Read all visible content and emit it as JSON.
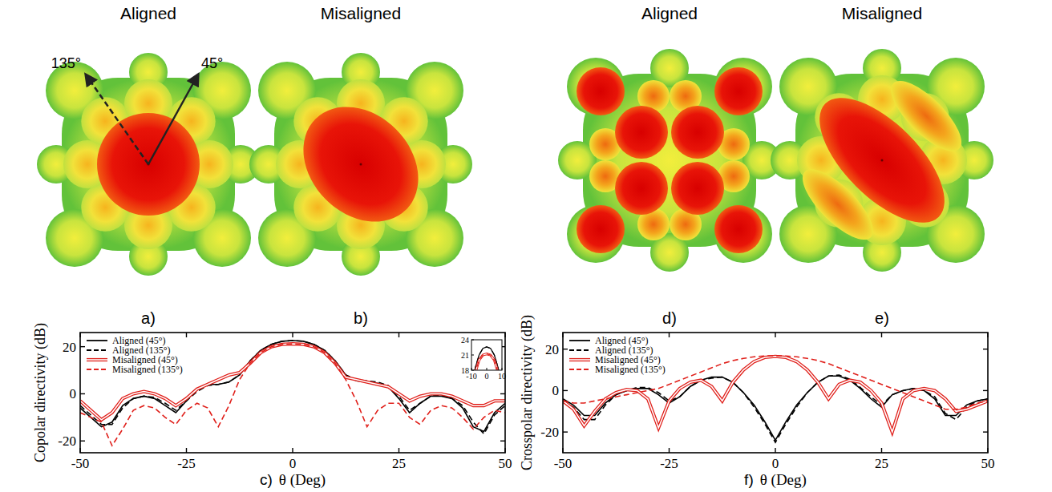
{
  "renders": [
    {
      "title": "Aligned",
      "label": "a)"
    },
    {
      "title": "Misaligned",
      "label": "b)"
    },
    {
      "title": "Aligned",
      "label": "d)"
    },
    {
      "title": "Misaligned",
      "label": "e)"
    }
  ],
  "arrows": [
    "135°",
    "45°"
  ],
  "chart_data": [
    {
      "type": "line",
      "label": "c)",
      "x_label": "θ (Deg)",
      "y_label": "Copolar directivity (dB)",
      "x": [
        -50,
        -47.5,
        -45,
        -42.5,
        -40,
        -37.5,
        -35,
        -32.5,
        -30,
        -27.5,
        -25,
        -22.5,
        -20,
        -17.5,
        -15,
        -12.5,
        -10,
        -7.5,
        -5,
        -2.5,
        0,
        2.5,
        5,
        7.5,
        10,
        12.5,
        15,
        17.5,
        20,
        22.5,
        25,
        27.5,
        30,
        32.5,
        35,
        37.5,
        40,
        42.5,
        45,
        47.5,
        50
      ],
      "xlim": [
        -50,
        50
      ],
      "xticks": [
        -50,
        -25,
        0,
        25,
        50
      ],
      "ylim": [
        -25,
        26
      ],
      "yticks": [
        -20,
        0,
        20
      ],
      "grid": false,
      "legend": "upper-left",
      "series": [
        {
          "name": "Aligned (45°)",
          "color": "#000000",
          "line_style": "solid",
          "values": [
            -6,
            -10,
            -14,
            -12,
            -5,
            -2,
            -1,
            -2,
            -5,
            -8,
            -3,
            2,
            4,
            4,
            5,
            8,
            14,
            18.5,
            21,
            22.3,
            22.6,
            22.3,
            21,
            18.5,
            14,
            8,
            5.5,
            5,
            4.5,
            3,
            -2,
            -8,
            -4,
            -1,
            -1,
            -2,
            -6,
            -14,
            -16,
            -8,
            -4
          ]
        },
        {
          "name": "Aligned (135°)",
          "color": "#000000",
          "line_style": "dashed",
          "values": [
            -5,
            -9,
            -13,
            -13,
            -6,
            -2,
            -1,
            -1.5,
            -4,
            -7,
            -3,
            1,
            3.5,
            4,
            5,
            8,
            14,
            18.5,
            21,
            22.3,
            22.6,
            22.3,
            21,
            18.5,
            14,
            8,
            6,
            5.5,
            5,
            3.5,
            -1,
            -7,
            -4,
            -1,
            -0.5,
            -2,
            -5,
            -12,
            -17,
            -9,
            -5
          ]
        },
        {
          "name": "Misaligned (45°)",
          "color": "#e0201b",
          "line_style": "double",
          "values": [
            -3,
            -7,
            -11,
            -8,
            -2,
            0,
            1,
            0,
            -2,
            -5,
            -2,
            2,
            4,
            6,
            8,
            9,
            13,
            17.5,
            20,
            21,
            21.2,
            21,
            20,
            17.5,
            13,
            7,
            6,
            5,
            4,
            3,
            0,
            -3,
            -1,
            0,
            0,
            -1,
            -3,
            -5,
            -5,
            -3,
            -3
          ]
        },
        {
          "name": "Misaligned (135°)",
          "color": "#e0201b",
          "line_style": "dashed",
          "values": [
            -8,
            -10,
            -12,
            -22,
            -15,
            -7,
            -5,
            -6,
            -10,
            -13,
            -7,
            -4,
            -6,
            -14,
            -5,
            6,
            13,
            17.5,
            20,
            21,
            21.2,
            21,
            20,
            17.5,
            13,
            6,
            -3,
            -14,
            -7,
            -4,
            -4,
            -10,
            -13,
            -7,
            -5,
            -6,
            -10,
            -15,
            -10,
            -7,
            -8
          ]
        }
      ],
      "inset": {
        "xlim": [
          -10,
          10
        ],
        "ylim": [
          18,
          24
        ],
        "xticks": [
          -10,
          0,
          10
        ],
        "yticks": [
          18,
          21,
          24
        ]
      }
    },
    {
      "type": "line",
      "label": "f)",
      "x_label": "θ (Deg)",
      "y_label": "Crosspolar directivity (dB)",
      "x": [
        -50,
        -47.5,
        -45,
        -42.5,
        -40,
        -37.5,
        -35,
        -32.5,
        -30,
        -27.5,
        -25,
        -22.5,
        -20,
        -17.5,
        -15,
        -12.5,
        -10,
        -7.5,
        -5,
        -2.5,
        0,
        2.5,
        5,
        7.5,
        10,
        12.5,
        15,
        17.5,
        20,
        22.5,
        25,
        27.5,
        30,
        32.5,
        35,
        37.5,
        40,
        42.5,
        45,
        47.5,
        50
      ],
      "xlim": [
        -50,
        50
      ],
      "xticks": [
        -50,
        -25,
        0,
        25,
        50
      ],
      "ylim": [
        -30,
        28
      ],
      "yticks": [
        -20,
        0,
        20
      ],
      "grid": false,
      "legend": "upper-left",
      "series": [
        {
          "name": "Aligned (45°)",
          "color": "#000000",
          "line_style": "solid",
          "values": [
            -4,
            -7,
            -12,
            -12,
            -6,
            -2,
            0,
            1,
            1,
            -2,
            -6,
            -3,
            2,
            5,
            6.5,
            6.5,
            4,
            -1,
            -7,
            -15,
            -24,
            -15,
            -7,
            -1,
            4,
            7,
            7,
            5,
            1,
            -4,
            -8,
            -2,
            0,
            1,
            0,
            -4,
            -12,
            -12,
            -7,
            -5,
            -4
          ]
        },
        {
          "name": "Aligned (135°)",
          "color": "#000000",
          "line_style": "dashed",
          "values": [
            -5,
            -8,
            -14,
            -14,
            -7,
            -2,
            0,
            1.5,
            1.5,
            -1,
            -5,
            -3,
            2,
            5,
            6,
            6.5,
            4,
            -1,
            -8,
            -16,
            -25,
            -16,
            -8,
            -1,
            4,
            7,
            7.5,
            5.5,
            1.5,
            -3,
            -7,
            -2,
            0,
            1,
            0,
            -3,
            -11,
            -14,
            -8,
            -5,
            -4
          ]
        },
        {
          "name": "Misaligned (45°)",
          "color": "#e0201b",
          "line_style": "double",
          "values": [
            -5,
            -9,
            -17,
            -10,
            -4,
            -1,
            0.5,
            0,
            -4,
            -18,
            -5,
            1,
            4,
            5,
            2,
            -5,
            4,
            10,
            14,
            16,
            16.5,
            16,
            14,
            10,
            4,
            -4,
            3,
            5,
            4,
            0,
            -6,
            -20,
            -4,
            0,
            1,
            0,
            -4,
            -10,
            -9,
            -7,
            -5
          ]
        },
        {
          "name": "Misaligned (135°)",
          "color": "#e0201b",
          "line_style": "dashed",
          "values": [
            -5,
            -6,
            -6,
            -5,
            -4,
            -3,
            -2,
            -1,
            0,
            1,
            3,
            5,
            7,
            9,
            11,
            13,
            14.5,
            15.5,
            16.3,
            16.7,
            16.8,
            16.7,
            16.3,
            15.5,
            14.5,
            13,
            11,
            9,
            7,
            5,
            3,
            1,
            -1,
            -3,
            -5,
            -7,
            -9,
            -9,
            -8,
            -6,
            -5
          ]
        }
      ]
    }
  ]
}
